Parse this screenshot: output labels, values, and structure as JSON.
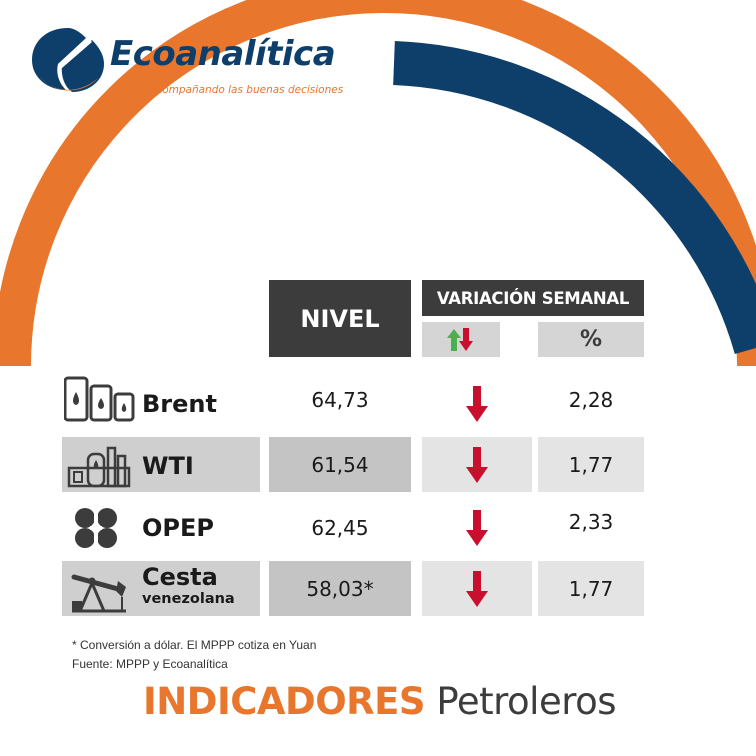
{
  "brand": {
    "name": "Ecoanalítica",
    "tagline": "acompañando las buenas decisiones"
  },
  "colors": {
    "orange": "#e8762c",
    "navy": "#0e3f6a",
    "dark_header": "#3c3c3c",
    "down_red": "#c8102e",
    "up_green": "#4caf50"
  },
  "table": {
    "header_level": "NIVEL",
    "header_variation": "VARIACIÓN SEMANAL",
    "header_percent": "%",
    "header_direction_icon": "up-down-arrows-icon",
    "rows": [
      {
        "name": "Brent",
        "subname": "",
        "icon": "oil-barrels-icon",
        "value": "64,73",
        "direction": "down",
        "percent": "2,28",
        "shaded": false
      },
      {
        "name": "WTI",
        "subname": "",
        "icon": "refinery-icon",
        "value": "61,54",
        "direction": "down",
        "percent": "1,77",
        "shaded": true
      },
      {
        "name": "OPEP",
        "subname": "",
        "icon": "opec-logo-icon",
        "value": "62,45",
        "direction": "down",
        "percent": "2,33",
        "shaded": false
      },
      {
        "name": "Cesta",
        "subname": "venezolana",
        "icon": "oil-pump-jack-icon",
        "value": "58,03*",
        "direction": "down",
        "percent": "1,77",
        "shaded": true
      }
    ]
  },
  "footnotes": {
    "note": "* Conversión a dólar. El MPPP cotiza en Yuan",
    "source": "Fuente: MPPP y Ecoanalítica"
  },
  "title": {
    "highlight": "INDICADORES",
    "rest": "Petroleros"
  }
}
